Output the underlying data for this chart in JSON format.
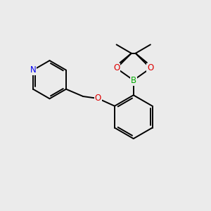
{
  "background_color": "#ebebeb",
  "bond_color": "#000000",
  "bond_width": 1.4,
  "atom_colors": {
    "N": "#0000ee",
    "O": "#dd0000",
    "B": "#00aa00",
    "C": "#000000"
  },
  "figsize": [
    3.0,
    3.0
  ],
  "dpi": 100,
  "xlim": [
    0,
    10
  ],
  "ylim": [
    0,
    10
  ],
  "label_fontsize": 8.5,
  "methyl_fontsize": 7.5
}
